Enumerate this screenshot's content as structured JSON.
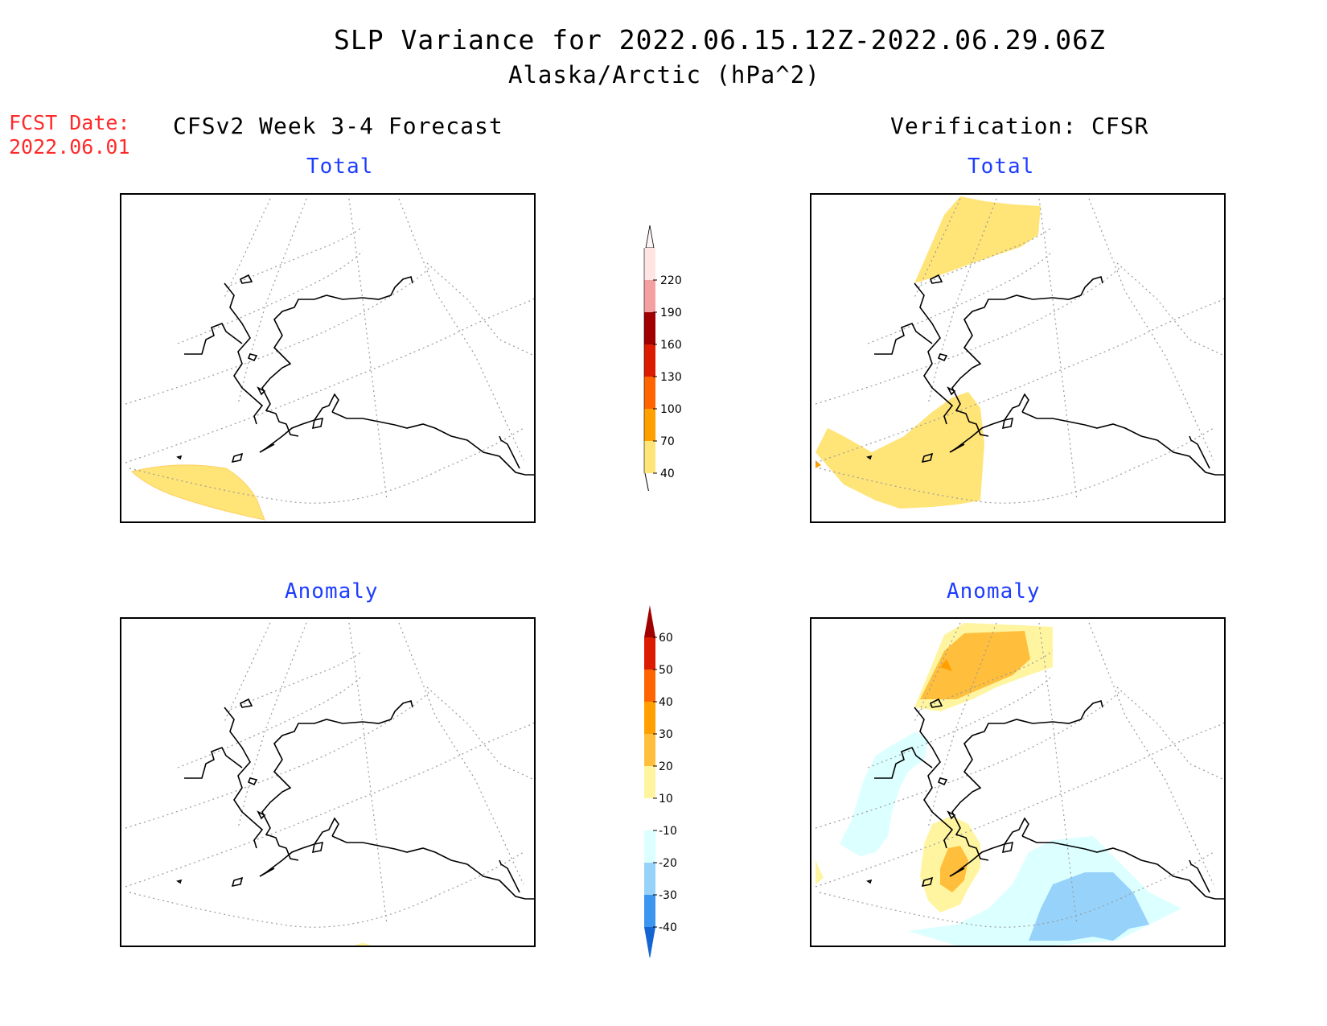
{
  "header": {
    "title": "SLP Variance for 2022.06.15.12Z-2022.06.29.06Z",
    "subtitle": "Alaska/Arctic (hPa^2)",
    "fcst_label": "FCST Date:",
    "fcst_date": "2022.06.01",
    "left_heading": "CFSv2 Week 3-4 Forecast",
    "right_heading": "Verification: CFSR"
  },
  "panels": {
    "forecast_total": "Total",
    "forecast_anomaly": "Anomaly",
    "verification_total": "Total",
    "verification_anomaly": "Anomaly"
  },
  "colorbar_total": {
    "labels": [
      "220",
      "190",
      "160",
      "130",
      "100",
      "70",
      "40"
    ],
    "colors": [
      "#ffe4e4",
      "#f4a0a0",
      "#a00000",
      "#dc1c00",
      "#ff6400",
      "#ffa000",
      "#ffe478"
    ]
  },
  "colorbar_anomaly": {
    "labels": [
      "60",
      "50",
      "40",
      "30",
      "20",
      "10",
      "-10",
      "-20",
      "-30",
      "-40"
    ],
    "colors": [
      "#a00000",
      "#dc1c00",
      "#ff6400",
      "#ffa000",
      "#ffbe3c",
      "#fff5a0",
      "#ffffff",
      "#dcffff",
      "#96d2fa",
      "#3c96f0",
      "#1464d2"
    ]
  }
}
